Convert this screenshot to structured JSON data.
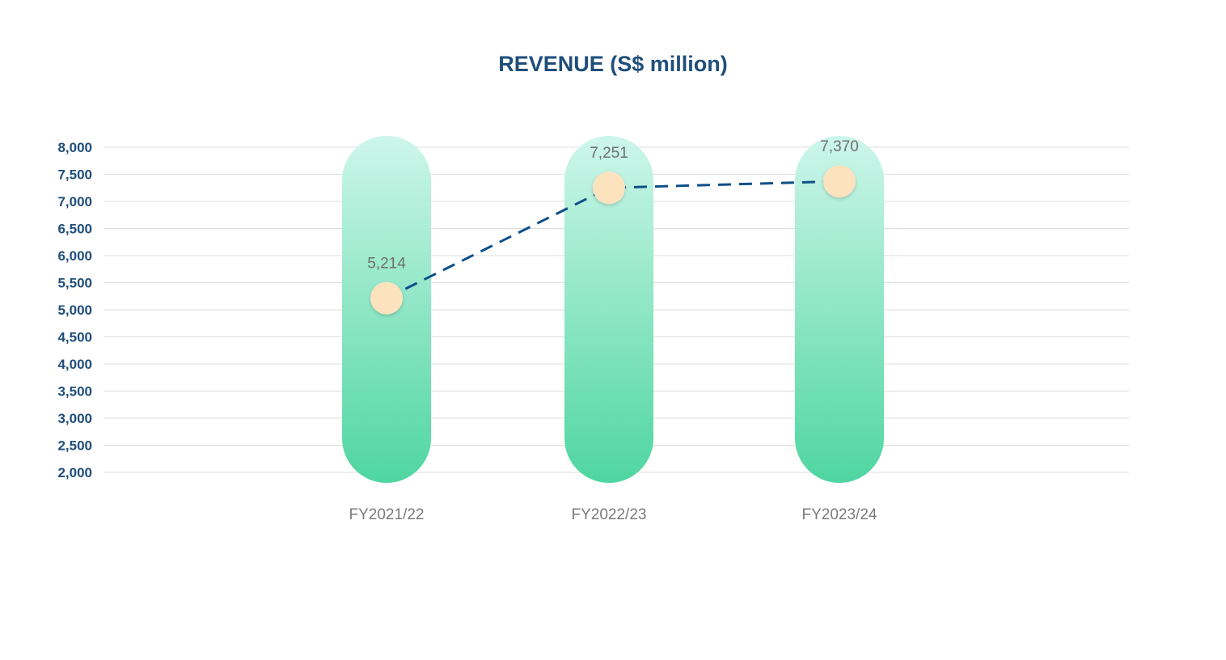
{
  "chart_data": {
    "type": "bar",
    "title": "REVENUE (S$ million)",
    "categories": [
      "FY2021/22",
      "FY2022/23",
      "FY2023/24"
    ],
    "values": [
      5214,
      7251,
      7370
    ],
    "data_labels": [
      "5,214",
      "7,251",
      "7,370"
    ],
    "ylim": [
      2000,
      8000
    ],
    "yticks": [
      2000,
      2500,
      3000,
      3500,
      4000,
      4500,
      5000,
      5500,
      6000,
      6500,
      7000,
      7500,
      8000
    ],
    "ytick_labels": [
      "2,000",
      "2,500",
      "3,000",
      "3,500",
      "4,000",
      "4,500",
      "5,000",
      "5,500",
      "6,000",
      "6,500",
      "7,000",
      "7,500",
      "8,000"
    ],
    "grid": true,
    "overlay": "dashed line with circular markers at each value",
    "colors": {
      "bar_top": "#cdf6ea",
      "bar_bottom": "#4fd6a1",
      "marker": "#fde3bd",
      "line": "#0f4f87",
      "grid": "#dcdcdc",
      "axis_text": "#1f4e79",
      "category_text": "#7a7a7a"
    }
  }
}
